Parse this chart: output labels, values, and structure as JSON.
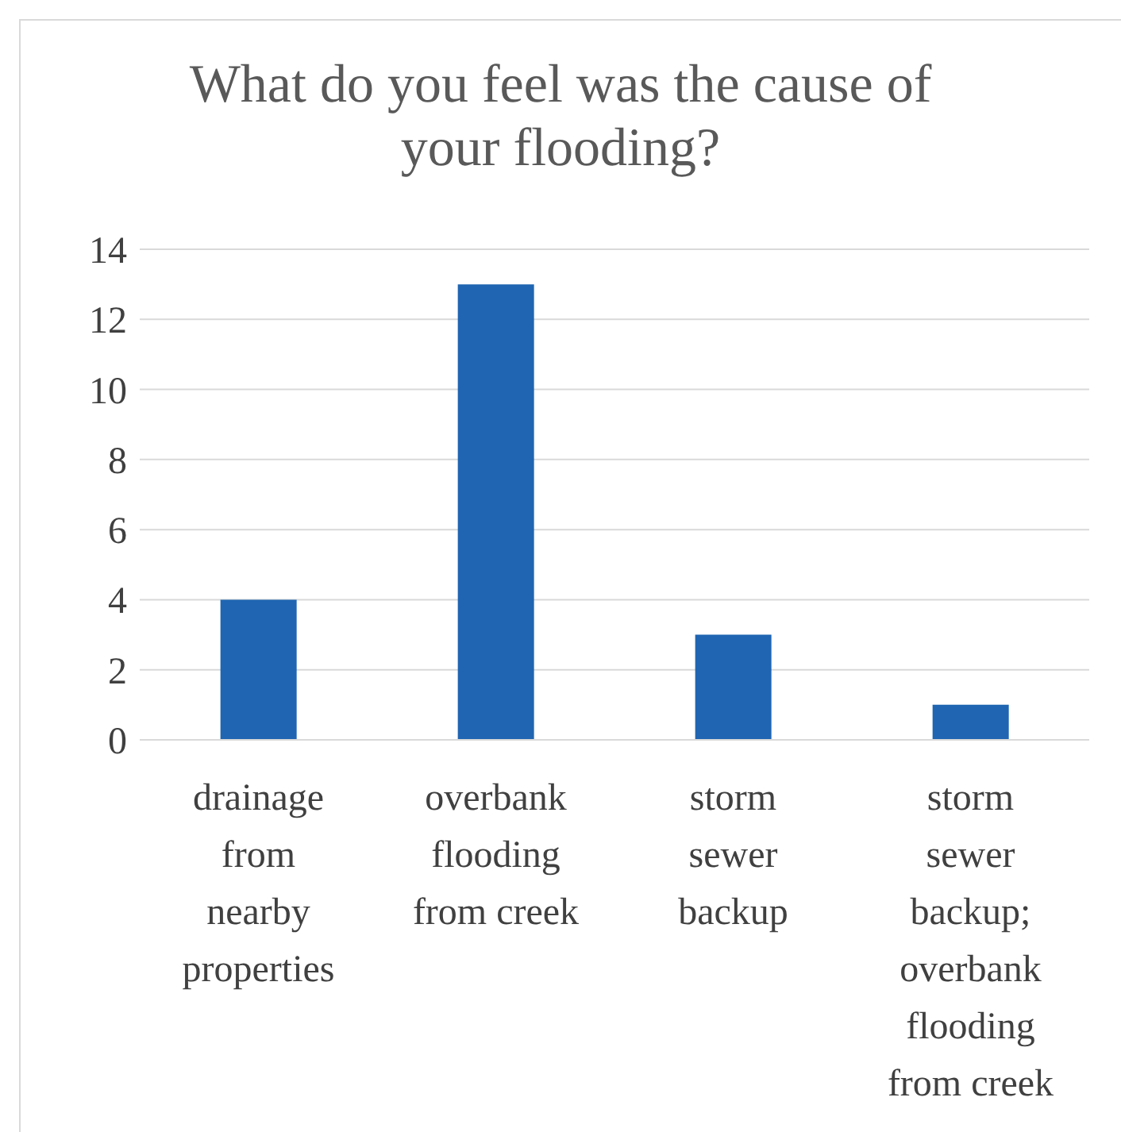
{
  "chart_data": {
    "type": "bar",
    "title": "What do you feel was the cause of your flooding?",
    "categories": [
      "drainage from nearby properties",
      "overbank flooding from creek",
      "storm sewer backup",
      "storm sewer backup; overbank flooding from creek"
    ],
    "values": [
      4,
      13,
      3,
      1
    ],
    "color": "#1f65b2",
    "ylim": [
      0,
      14
    ],
    "yticks": [
      0,
      2,
      4,
      6,
      8,
      10,
      12,
      14
    ],
    "grid": "y",
    "legend": false
  }
}
